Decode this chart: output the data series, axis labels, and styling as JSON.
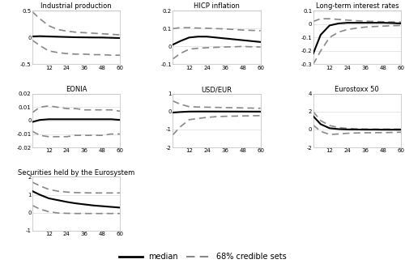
{
  "x": [
    1,
    6,
    12,
    18,
    24,
    30,
    36,
    42,
    48,
    54,
    60
  ],
  "subplots": [
    {
      "title": "Industrial production",
      "median": [
        0.02,
        0.025,
        0.02,
        0.015,
        0.01,
        0.005,
        0.003,
        0.001,
        0.0,
        -0.005,
        -0.01
      ],
      "upper": [
        0.48,
        0.35,
        0.22,
        0.15,
        0.12,
        0.1,
        0.09,
        0.08,
        0.07,
        0.06,
        0.05
      ],
      "lower": [
        -0.05,
        -0.15,
        -0.25,
        -0.28,
        -0.3,
        -0.31,
        -0.31,
        -0.32,
        -0.32,
        -0.33,
        -0.33
      ],
      "ylim": [
        -0.5,
        0.5
      ],
      "yticks": [
        -0.5,
        0,
        0.5
      ],
      "ytick_labels": [
        "-0.5",
        "0",
        "0.5"
      ]
    },
    {
      "title": "HICP inflation",
      "median": [
        0.01,
        0.03,
        0.05,
        0.055,
        0.055,
        0.05,
        0.045,
        0.04,
        0.035,
        0.03,
        0.025
      ],
      "upper": [
        0.1,
        0.105,
        0.105,
        0.103,
        0.102,
        0.1,
        0.098,
        0.095,
        0.092,
        0.09,
        0.088
      ],
      "lower": [
        -0.07,
        -0.04,
        -0.015,
        -0.01,
        -0.007,
        -0.005,
        -0.003,
        -0.002,
        0.0,
        -0.002,
        -0.003
      ],
      "ylim": [
        -0.1,
        0.2
      ],
      "yticks": [
        -0.1,
        0,
        0.1,
        0.2
      ],
      "ytick_labels": [
        "-0.1",
        "0",
        "0.1",
        "0.2"
      ]
    },
    {
      "title": "Long-term interest rates",
      "median": [
        -0.22,
        -0.08,
        -0.01,
        0.005,
        0.01,
        0.01,
        0.01,
        0.01,
        0.01,
        0.008,
        0.005
      ],
      "upper": [
        0.02,
        0.04,
        0.04,
        0.035,
        0.03,
        0.025,
        0.022,
        0.02,
        0.018,
        0.016,
        0.015
      ],
      "lower": [
        -0.3,
        -0.2,
        -0.1,
        -0.06,
        -0.04,
        -0.03,
        -0.022,
        -0.018,
        -0.015,
        -0.012,
        -0.01
      ],
      "ylim": [
        -0.3,
        0.1
      ],
      "yticks": [
        -0.3,
        -0.2,
        -0.1,
        0,
        0.1
      ],
      "ytick_labels": [
        "-0.3",
        "-0.2",
        "-0.1",
        "0",
        "0.1"
      ]
    },
    {
      "title": "EONIA",
      "median": [
        -0.001,
        0.0005,
        0.001,
        0.001,
        0.001,
        0.001,
        0.001,
        0.001,
        0.001,
        0.001,
        0.0005
      ],
      "upper": [
        0.006,
        0.01,
        0.011,
        0.01,
        0.009,
        0.009,
        0.008,
        0.008,
        0.008,
        0.008,
        0.007
      ],
      "lower": [
        -0.008,
        -0.011,
        -0.012,
        -0.012,
        -0.012,
        -0.011,
        -0.011,
        -0.011,
        -0.011,
        -0.01,
        -0.01
      ],
      "ylim": [
        -0.02,
        0.02
      ],
      "yticks": [
        -0.02,
        -0.01,
        0,
        0.01,
        0.02
      ],
      "ytick_labels": [
        "-0.02",
        "-0.01",
        "0",
        "0.01",
        "0.02"
      ]
    },
    {
      "title": "USD/EUR",
      "median": [
        -0.05,
        -0.02,
        0.005,
        0.008,
        0.009,
        0.008,
        0.007,
        0.006,
        0.005,
        0.004,
        0.003
      ],
      "upper": [
        0.6,
        0.42,
        0.28,
        0.26,
        0.25,
        0.24,
        0.23,
        0.22,
        0.21,
        0.2,
        0.19
      ],
      "lower": [
        -1.3,
        -0.85,
        -0.45,
        -0.38,
        -0.32,
        -0.28,
        -0.26,
        -0.25,
        -0.24,
        -0.23,
        -0.22
      ],
      "ylim": [
        -2,
        1
      ],
      "yticks": [
        -2,
        -1,
        0,
        1
      ],
      "ytick_labels": [
        "-2",
        "-1",
        "0",
        "1"
      ]
    },
    {
      "title": "Eurostoxx 50",
      "median": [
        1.5,
        0.6,
        0.15,
        0.05,
        0.01,
        0.0,
        -0.01,
        -0.01,
        -0.02,
        -0.02,
        -0.02
      ],
      "upper": [
        2.0,
        1.0,
        0.45,
        0.22,
        0.12,
        0.08,
        0.06,
        0.05,
        0.05,
        0.05,
        0.05
      ],
      "lower": [
        0.5,
        -0.2,
        -0.55,
        -0.5,
        -0.42,
        -0.38,
        -0.36,
        -0.35,
        -0.35,
        -0.33,
        -0.3
      ],
      "ylim": [
        -2,
        4
      ],
      "yticks": [
        -2,
        0,
        2,
        4
      ],
      "ytick_labels": [
        "-2",
        "0",
        "2",
        "4"
      ]
    },
    {
      "title": "Securities held by the Eurosystem",
      "median": [
        1.2,
        1.0,
        0.8,
        0.7,
        0.6,
        0.52,
        0.46,
        0.4,
        0.36,
        0.32,
        0.28
      ],
      "upper": [
        1.7,
        1.5,
        1.3,
        1.2,
        1.15,
        1.12,
        1.11,
        1.1,
        1.1,
        1.1,
        1.1
      ],
      "lower": [
        0.4,
        0.2,
        0.05,
        -0.02,
        -0.04,
        -0.05,
        -0.05,
        -0.05,
        -0.05,
        -0.05,
        -0.05
      ],
      "ylim": [
        -1,
        2
      ],
      "yticks": [
        -1,
        0,
        1,
        2
      ],
      "ytick_labels": [
        "-1",
        "0",
        "1",
        "2"
      ]
    }
  ],
  "xticks": [
    12,
    24,
    36,
    48,
    60
  ],
  "median_color": "#000000",
  "credible_color": "#888888",
  "median_lw": 1.5,
  "credible_lw": 1.2,
  "legend_median": "median",
  "legend_credible": "68% credible sets",
  "background_color": "#ffffff",
  "spine_color": "#bbbbbb",
  "grid_color": "#dddddd"
}
